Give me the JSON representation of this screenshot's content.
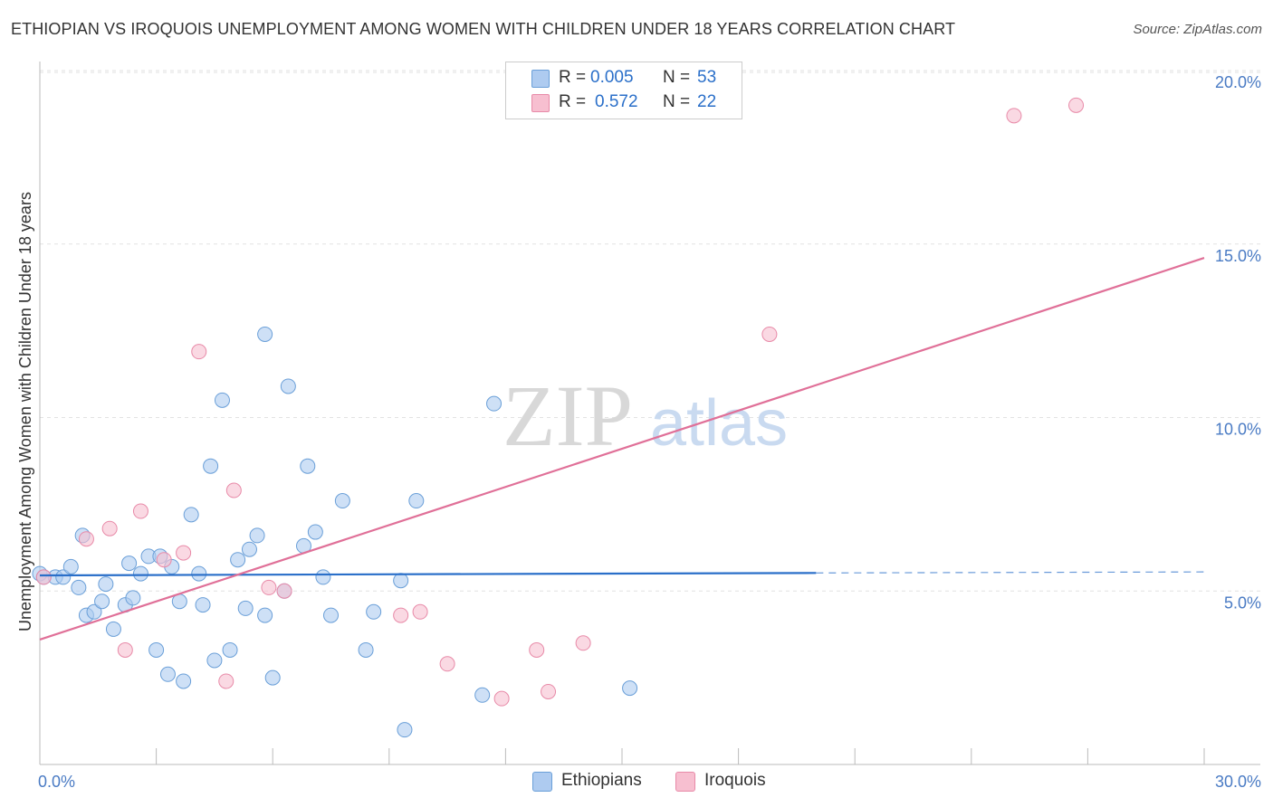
{
  "header": {
    "title": "ETHIOPIAN VS IROQUOIS UNEMPLOYMENT AMONG WOMEN WITH CHILDREN UNDER 18 YEARS CORRELATION CHART",
    "source": "Source: ZipAtlas.com"
  },
  "watermark": {
    "zip": "ZIP",
    "atlas": "atlas"
  },
  "legend": {
    "rows": [
      {
        "r_label": "R =",
        "r_value": "0.005",
        "n_label": "N =",
        "n_value": "53"
      },
      {
        "r_label": "R =",
        "r_value": "0.572",
        "n_label": "N =",
        "n_value": "22"
      }
    ]
  },
  "bottom_legend": {
    "ethiopians": "Ethiopians",
    "iroquois": "Iroquois"
  },
  "colors": {
    "blue_fill": "#aecbf0",
    "blue_stroke": "#6a9fd8",
    "blue_line": "#2a6fc9",
    "pink_fill": "#f7bfd0",
    "pink_stroke": "#e88aa8",
    "pink_line": "#e07098",
    "tick_text": "#4a7bc4"
  },
  "chart_data": {
    "type": "scatter",
    "title": "ETHIOPIAN VS IROQUOIS UNEMPLOYMENT AMONG WOMEN WITH CHILDREN UNDER 18 YEARS CORRELATION CHART",
    "xlabel": "",
    "ylabel": "Unemployment Among Women with Children Under 18 years",
    "xlim": [
      0,
      30
    ],
    "ylim": [
      0,
      20.5
    ],
    "x_tick_labels": [
      "0.0%",
      "30.0%"
    ],
    "y_ticks": [
      5,
      10,
      15,
      20
    ],
    "y_tick_labels": [
      "5.0%",
      "10.0%",
      "15.0%",
      "20.0%"
    ],
    "series": [
      {
        "name": "Ethiopians",
        "points": [
          [
            0.0,
            5.5
          ],
          [
            0.4,
            5.4
          ],
          [
            0.6,
            5.4
          ],
          [
            0.8,
            5.7
          ],
          [
            1.0,
            5.1
          ],
          [
            1.1,
            6.6
          ],
          [
            1.2,
            4.3
          ],
          [
            1.4,
            4.4
          ],
          [
            1.6,
            4.7
          ],
          [
            1.7,
            5.2
          ],
          [
            1.9,
            3.9
          ],
          [
            2.2,
            4.6
          ],
          [
            2.3,
            5.8
          ],
          [
            2.4,
            4.8
          ],
          [
            2.6,
            5.5
          ],
          [
            2.8,
            6.0
          ],
          [
            3.0,
            3.3
          ],
          [
            3.1,
            6.0
          ],
          [
            3.3,
            2.6
          ],
          [
            3.4,
            5.7
          ],
          [
            3.6,
            4.7
          ],
          [
            3.7,
            2.4
          ],
          [
            3.9,
            7.2
          ],
          [
            4.1,
            5.5
          ],
          [
            4.2,
            4.6
          ],
          [
            4.4,
            8.6
          ],
          [
            4.5,
            3.0
          ],
          [
            4.7,
            10.5
          ],
          [
            4.9,
            3.3
          ],
          [
            5.1,
            5.9
          ],
          [
            5.3,
            4.5
          ],
          [
            5.4,
            6.2
          ],
          [
            5.6,
            6.6
          ],
          [
            5.8,
            4.3
          ],
          [
            5.8,
            12.4
          ],
          [
            6.0,
            2.5
          ],
          [
            6.3,
            5.0
          ],
          [
            6.4,
            10.9
          ],
          [
            6.8,
            6.3
          ],
          [
            6.9,
            8.6
          ],
          [
            7.1,
            6.7
          ],
          [
            7.3,
            5.4
          ],
          [
            7.5,
            4.3
          ],
          [
            7.8,
            7.6
          ],
          [
            8.4,
            3.3
          ],
          [
            8.6,
            4.4
          ],
          [
            9.3,
            5.3
          ],
          [
            9.4,
            1.0
          ],
          [
            9.7,
            7.6
          ],
          [
            11.4,
            2.0
          ],
          [
            11.7,
            10.4
          ],
          [
            15.2,
            2.2
          ],
          [
            0.1,
            5.4
          ]
        ],
        "trend": {
          "x": [
            0,
            20
          ],
          "y": [
            5.45,
            5.52
          ],
          "dashed_to": [
            30,
            5.55
          ]
        }
      },
      {
        "name": "Iroquois",
        "points": [
          [
            0.1,
            5.4
          ],
          [
            1.2,
            6.5
          ],
          [
            1.8,
            6.8
          ],
          [
            2.2,
            3.3
          ],
          [
            2.6,
            7.3
          ],
          [
            3.2,
            5.9
          ],
          [
            3.7,
            6.1
          ],
          [
            4.1,
            11.9
          ],
          [
            4.8,
            2.4
          ],
          [
            5.0,
            7.9
          ],
          [
            5.9,
            5.1
          ],
          [
            6.3,
            5.0
          ],
          [
            9.3,
            4.3
          ],
          [
            9.8,
            4.4
          ],
          [
            10.5,
            2.9
          ],
          [
            11.9,
            1.9
          ],
          [
            12.8,
            3.3
          ],
          [
            13.1,
            2.1
          ],
          [
            14.0,
            3.5
          ],
          [
            18.8,
            12.4
          ],
          [
            25.1,
            18.7
          ],
          [
            26.7,
            19.0
          ]
        ],
        "trend": {
          "x": [
            0,
            30
          ],
          "y": [
            3.6,
            14.6
          ]
        }
      }
    ]
  }
}
